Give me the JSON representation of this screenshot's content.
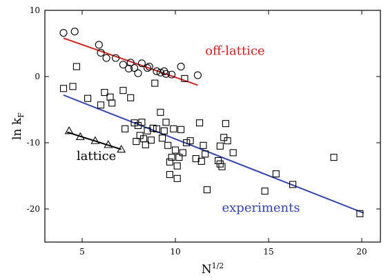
{
  "chart_data": {
    "type": "scatter",
    "xlabel_base": "N",
    "xlabel_sup": "1/2",
    "ylabel_base": "ln k",
    "ylabel_sub": "F",
    "xlim": [
      3,
      21
    ],
    "ylim": [
      -25,
      10
    ],
    "x_ticks": [
      5,
      10,
      15,
      20
    ],
    "y_ticks": [
      -20,
      -10,
      0,
      10
    ],
    "x_tick_labels": [
      "5",
      "10",
      "15",
      "20"
    ],
    "y_tick_labels": [
      "-20",
      "-10",
      "0",
      "10"
    ],
    "grid": false,
    "series": [
      {
        "name": "off-lattice",
        "marker": "circle",
        "color": "#cc2222",
        "points": [
          [
            4.0,
            6.6
          ],
          [
            4.6,
            6.8
          ],
          [
            5.9,
            4.8
          ],
          [
            6.0,
            3.6
          ],
          [
            6.3,
            2.8
          ],
          [
            6.8,
            2.8
          ],
          [
            7.2,
            1.8
          ],
          [
            7.5,
            1.2
          ],
          [
            7.6,
            2.1
          ],
          [
            7.8,
            1.3
          ],
          [
            8.0,
            0.5
          ],
          [
            8.2,
            2.0
          ],
          [
            8.5,
            1.3
          ],
          [
            8.6,
            1.5
          ],
          [
            9.0,
            0.8
          ],
          [
            9.2,
            0.6
          ],
          [
            9.4,
            0.8
          ],
          [
            9.5,
            0.4
          ],
          [
            9.8,
            0.3
          ],
          [
            10.3,
            1.5
          ],
          [
            11.2,
            0.2
          ]
        ],
        "fit": [
          [
            4.0,
            5.8
          ],
          [
            11.2,
            -1.3
          ]
        ]
      },
      {
        "name": "lattice",
        "marker": "triangle",
        "color": "#000000",
        "points": [
          [
            4.3,
            -8.2
          ],
          [
            4.9,
            -9.1
          ],
          [
            5.7,
            -9.7
          ],
          [
            6.4,
            -10.3
          ],
          [
            7.1,
            -11.0
          ]
        ],
        "fit": [
          [
            4.2,
            -8.4
          ],
          [
            7.1,
            -11.0
          ]
        ]
      },
      {
        "name": "experiments",
        "marker": "square",
        "color": "#3344aa",
        "points": [
          [
            4.0,
            -1.8
          ],
          [
            4.5,
            -1.5
          ],
          [
            4.7,
            1.5
          ],
          [
            5.3,
            -3.3
          ],
          [
            6.0,
            -4.3
          ],
          [
            6.2,
            -2.4
          ],
          [
            6.5,
            -3.1
          ],
          [
            6.6,
            -4.0
          ],
          [
            7.2,
            -2.1
          ],
          [
            7.3,
            -7.9
          ],
          [
            7.6,
            -3.2
          ],
          [
            7.8,
            -7.0
          ],
          [
            7.9,
            -9.8
          ],
          [
            8.0,
            -7.4
          ],
          [
            8.1,
            -8.9
          ],
          [
            8.2,
            -6.9
          ],
          [
            8.3,
            -9.4
          ],
          [
            8.4,
            -10.3
          ],
          [
            8.5,
            -8.2
          ],
          [
            8.7,
            -9.6
          ],
          [
            8.8,
            -7.8
          ],
          [
            8.9,
            -1.0
          ],
          [
            9.0,
            -7.9
          ],
          [
            9.2,
            -5.4
          ],
          [
            9.3,
            -9.3
          ],
          [
            9.4,
            -8.2
          ],
          [
            9.5,
            -6.9
          ],
          [
            9.6,
            -10.4
          ],
          [
            9.7,
            -12.9
          ],
          [
            9.7,
            -14.8
          ],
          [
            9.9,
            -7.9
          ],
          [
            9.8,
            -12.2
          ],
          [
            10.0,
            -11.1
          ],
          [
            10.1,
            -13.5
          ],
          [
            10.1,
            -15.4
          ],
          [
            10.2,
            -12.2
          ],
          [
            10.3,
            -8.0
          ],
          [
            10.4,
            -11.5
          ],
          [
            10.5,
            -0.3
          ],
          [
            10.6,
            -10.0
          ],
          [
            10.8,
            -9.7
          ],
          [
            11.1,
            -12.4
          ],
          [
            11.3,
            -7.0
          ],
          [
            11.4,
            -12.8
          ],
          [
            11.5,
            -10.4
          ],
          [
            11.6,
            -11.7
          ],
          [
            11.7,
            -17.1
          ],
          [
            12.3,
            -12.7
          ],
          [
            12.4,
            -13.2
          ],
          [
            12.4,
            -10.5
          ],
          [
            12.5,
            -13.6
          ],
          [
            12.6,
            -9.2
          ],
          [
            12.7,
            -7.1
          ],
          [
            12.8,
            -9.7
          ],
          [
            13.1,
            -11.5
          ],
          [
            14.8,
            -17.3
          ],
          [
            15.4,
            -14.7
          ],
          [
            16.3,
            -16.3
          ],
          [
            18.5,
            -12.2
          ],
          [
            19.9,
            -20.7
          ]
        ],
        "fit": [
          [
            4.0,
            -2.8
          ],
          [
            20.1,
            -20.6
          ]
        ]
      }
    ],
    "annotations": [
      {
        "text": "off-lattice",
        "x": 11.6,
        "y": 3.3,
        "color": "#cc2222"
      },
      {
        "text": "lattice",
        "x": 4.7,
        "y": -12.6,
        "color": "#000000"
      },
      {
        "text": "experiments",
        "x": 12.5,
        "y": -20.4,
        "color": "#3344aa"
      }
    ]
  }
}
